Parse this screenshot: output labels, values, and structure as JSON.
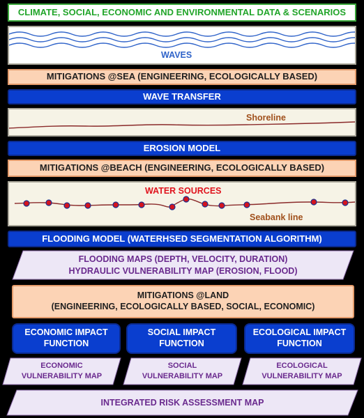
{
  "top_banner": "CLIMATE, SOCIAL, ECONOMIC AND ENVIRONMENTAL DATA & SCENARIOS",
  "waves_label": "WAVES",
  "mitigations_sea": "MITIGATIONS @SEA (ENGINEERING, ECOLOGICALLY BASED)",
  "wave_transfer": "WAVE TRANSFER",
  "shoreline_label": "Shoreline",
  "erosion_model": "EROSION MODEL",
  "mitigations_beach": "MITIGATIONS @BEACH  (ENGINEERING, ECOLOGICALLY BASED)",
  "water_sources_label": "WATER SOURCES",
  "seabank_label": "Seabank line",
  "flooding_model": "FLOODING MODEL (WATERHSED SEGMENTATION ALGORITHM)",
  "flooding_maps": {
    "line1": "FLOODING MAPS (DEPTH, VELOCITY, DURATION)",
    "line2": "HYDRAULIC VULNERABILITY MAP (EROSION, FLOOD)"
  },
  "mitigations_land": {
    "line1": "MITIGATIONS @LAND",
    "line2": "(ENGINEERING, ECOLOGICALLY BASED, SOCIAL, ECONOMIC)"
  },
  "impact_functions": [
    {
      "line1": "ECONOMIC  IMPACT",
      "line2": "FUNCTION"
    },
    {
      "line1": "SOCIAL  IMPACT",
      "line2": "FUNCTION"
    },
    {
      "line1": "ECOLOGICAL IMPACT",
      "line2": "FUNCTION"
    }
  ],
  "vulnerability_maps": [
    {
      "line1": "ECONOMIC",
      "line2": "VULNERABILITY MAP"
    },
    {
      "line1": "SOCIAL",
      "line2": "VULNERABILITY MAP"
    },
    {
      "line1": "ECOLOGICAL",
      "line2": "VULNERABILITY MAP"
    }
  ],
  "integrated_risk": "INTEGRATED RISK ASSESSMENT MAP",
  "colors": {
    "background": "#000000",
    "banner_green": "#22a52a",
    "model_blue": "#0a3ecf",
    "mitigation_peach": "#fcd3b5",
    "map_lavender": "#ede7f6",
    "map_text_purple": "#6a2a8e",
    "wave_blue": "#2f63c9",
    "shoreline_brown": "#8a2a2a",
    "label_orange": "#a0501c",
    "water_red": "#e0141e"
  }
}
